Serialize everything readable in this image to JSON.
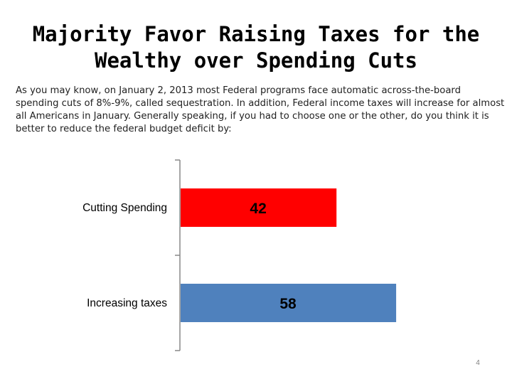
{
  "slide": {
    "title_line1": "Majority Favor Raising Taxes for the",
    "title_line2": "Wealthy over Spending Cuts",
    "question": "As you may know, on January 2, 2013 most Federal programs face automatic across-the-board spending cuts of 8%-9%, called sequestration.  In addition, Federal income taxes will increase for almost all Americans in January. Generally speaking, if you had to choose one or the other, do you think it is better to reduce the federal budget deficit by:",
    "page_number": "4"
  },
  "chart_data": {
    "type": "bar",
    "orientation": "horizontal",
    "title": "",
    "xlabel": "",
    "ylabel": "",
    "xlim": [
      0,
      70
    ],
    "categories": [
      "Cutting Spending",
      "Increasing taxes"
    ],
    "values": [
      42,
      58
    ],
    "colors": [
      "#ff0000",
      "#4f81bd"
    ],
    "data_labels": [
      "42",
      "58"
    ],
    "grid": false,
    "legend": "none"
  }
}
